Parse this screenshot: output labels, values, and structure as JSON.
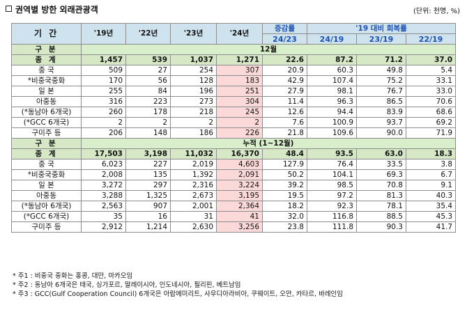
{
  "title": "권역별 방한 외래관광객",
  "unit": "(단위: 천명, %)",
  "header": {
    "period_label": "기 간",
    "years": [
      "'19년",
      "'22년",
      "'23년",
      "'24년"
    ],
    "change_label": "증감률",
    "change_sub": "24/23",
    "recovery_label": "'19 대비 회복률",
    "recovery_sub": [
      "24/19",
      "23/19",
      "22/19"
    ]
  },
  "sections": [
    {
      "label": "구 분",
      "period": "12월",
      "rows": [
        {
          "name": "종 계",
          "values": [
            "1,457",
            "539",
            "1,037",
            "1,271",
            "22.6",
            "87.2",
            "71.2",
            "37.0"
          ]
        },
        {
          "name": "중 국",
          "values": [
            "509",
            "27",
            "254",
            "307",
            "20.9",
            "60.3",
            "49.8",
            "5.4"
          ]
        },
        {
          "name": "*비중국중화",
          "values": [
            "170",
            "56",
            "128",
            "183",
            "42.9",
            "107.4",
            "75.2",
            "33.1"
          ]
        },
        {
          "name": "일 본",
          "values": [
            "255",
            "84",
            "196",
            "251",
            "27.9",
            "98.1",
            "76.7",
            "33.0"
          ]
        },
        {
          "name": "아중동",
          "values": [
            "316",
            "223",
            "273",
            "304",
            "11.4",
            "96.3",
            "86.5",
            "70.6"
          ]
        },
        {
          "name": "(*동남아 6개국)",
          "values": [
            "260",
            "178",
            "218",
            "245",
            "12.6",
            "94.4",
            "83.9",
            "68.6"
          ]
        },
        {
          "name": "(*GCC 6개국)",
          "values": [
            "2",
            "2",
            "2",
            "2",
            "7.6",
            "100.9",
            "93.7",
            "69.2"
          ]
        },
        {
          "name": "구미주 등",
          "values": [
            "206",
            "148",
            "186",
            "226",
            "21.8",
            "109.6",
            "90.0",
            "71.9"
          ]
        }
      ]
    },
    {
      "label": "구 분",
      "period": "누적 (1~12월)",
      "rows": [
        {
          "name": "종 계",
          "values": [
            "17,503",
            "3,198",
            "11,032",
            "16,370",
            "48.4",
            "93.5",
            "63.0",
            "18.3"
          ]
        },
        {
          "name": "중 국",
          "values": [
            "6,023",
            "227",
            "2,019",
            "4,603",
            "127.9",
            "76.4",
            "33.5",
            "3.8"
          ]
        },
        {
          "name": "*비중국중화",
          "values": [
            "2,008",
            "135",
            "1,392",
            "2,091",
            "50.2",
            "104.1",
            "69.3",
            "6.7"
          ]
        },
        {
          "name": "일 본",
          "values": [
            "3,272",
            "297",
            "2,316",
            "3,224",
            "39.2",
            "98.5",
            "70.8",
            "9.1"
          ]
        },
        {
          "name": "아중동",
          "values": [
            "3,288",
            "1,325",
            "2,673",
            "3,195",
            "19.5",
            "97.2",
            "81.3",
            "40.3"
          ]
        },
        {
          "name": "(*동남아 6개국)",
          "values": [
            "2,563",
            "907",
            "2,001",
            "2,364",
            "18.2",
            "92.3",
            "78.1",
            "35.4"
          ]
        },
        {
          "name": "(*GCC 6개국)",
          "values": [
            "35",
            "16",
            "31",
            "41",
            "32.0",
            "116.8",
            "88.5",
            "45.3"
          ]
        },
        {
          "name": "구미주 등",
          "values": [
            "2,912",
            "1,214",
            "2,630",
            "3,256",
            "23.8",
            "111.8",
            "90.3",
            "41.7"
          ]
        }
      ]
    }
  ],
  "notes": [
    "* 주1 : 비중국 중화는 홍콩, 대만, 마카오임",
    "* 주2 : 동남아 6개국은 태국, 싱가포르, 말레이시아, 인도네시아, 필리핀, 베트남임",
    "* 주3 : GCC(Gulf Cooperation Council) 6개국은 아랍에미리트, 사우디아라비아, 쿠웨이트, 오만, 카타르, 바레인임"
  ],
  "colors": {
    "header_bg": "#cfe3ef",
    "section_bg": "#d6e8c6",
    "highlight_2024": "#fcd9d9",
    "accent_blue": "#1a4fb5"
  }
}
